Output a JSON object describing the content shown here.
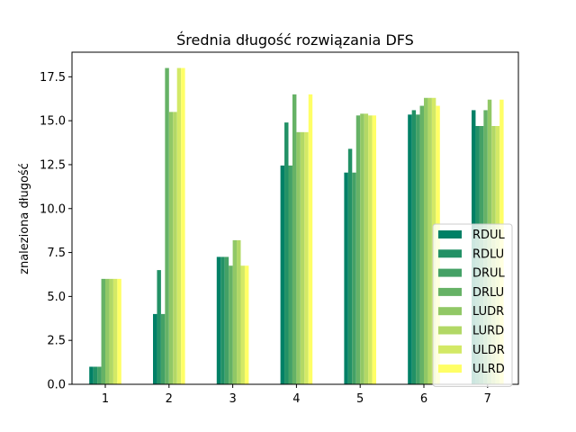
{
  "chart_data": {
    "type": "bar",
    "title": "Średnia długość rozwiązania DFS",
    "xlabel": "",
    "ylabel": "znaleziona długość",
    "categories": [
      "1",
      "2",
      "3",
      "4",
      "5",
      "6",
      "7"
    ],
    "ylim": [
      0,
      18.9
    ],
    "yticks": [
      "0.0",
      "2.5",
      "5.0",
      "7.5",
      "10.0",
      "12.5",
      "15.0",
      "17.5"
    ],
    "grid": false,
    "legend_position": "lower-right",
    "series": [
      {
        "name": "RDUL",
        "color": "#008066",
        "values": [
          1.0,
          4.0,
          7.25,
          12.45,
          12.05,
          15.35,
          15.6
        ]
      },
      {
        "name": "RDLU",
        "color": "#229166",
        "values": [
          1.0,
          6.5,
          7.25,
          14.9,
          13.4,
          15.6,
          14.7
        ]
      },
      {
        "name": "DRUL",
        "color": "#44a166",
        "values": [
          1.0,
          4.0,
          7.25,
          12.45,
          12.05,
          15.35,
          14.7
        ]
      },
      {
        "name": "DRLU",
        "color": "#66b266",
        "values": [
          6.0,
          18.0,
          6.75,
          16.5,
          15.3,
          15.85,
          15.6
        ]
      },
      {
        "name": "LUDR",
        "color": "#91c866",
        "values": [
          6.0,
          15.5,
          8.2,
          14.35,
          15.4,
          16.3,
          16.2
        ]
      },
      {
        "name": "LURD",
        "color": "#b2d866",
        "values": [
          6.0,
          15.5,
          8.2,
          14.35,
          15.4,
          16.3,
          14.7
        ]
      },
      {
        "name": "ULDR",
        "color": "#d3e966",
        "values": [
          6.0,
          18.0,
          6.75,
          14.35,
          15.3,
          16.3,
          14.7
        ]
      },
      {
        "name": "ULRD",
        "color": "#ffff66",
        "values": [
          6.0,
          18.0,
          6.75,
          16.5,
          15.3,
          15.85,
          16.2
        ]
      }
    ]
  }
}
